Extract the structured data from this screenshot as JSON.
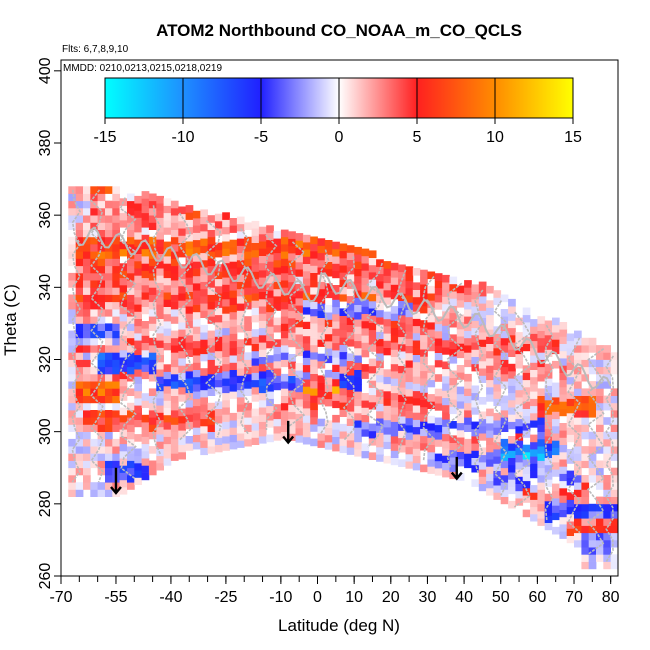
{
  "chart_data": {
    "type": "heatmap",
    "title": "ATOM2 Northbound CO_NOAA_m_CO_QCLS",
    "flights_label": "Flts: 6,7,8,9,10",
    "dates_label": "MMDD: 0210,0213,0215,0218,0219",
    "xlabel": "Latitude (deg N)",
    "ylabel": "Theta (C)",
    "xlim": [
      -70,
      82
    ],
    "ylim": [
      260,
      403
    ],
    "x_ticks": [
      -70,
      -55,
      -40,
      -25,
      -10,
      0,
      10,
      20,
      30,
      40,
      50,
      60,
      70,
      80
    ],
    "x_tick_labels": [
      "-70",
      "-55",
      "-40",
      "-25",
      "-10",
      "0",
      "10",
      "20",
      "30",
      "40",
      "50",
      "60",
      "70",
      "80"
    ],
    "y_ticks": [
      260,
      280,
      300,
      320,
      340,
      360,
      380,
      400
    ],
    "y_tick_labels": [
      "260",
      "280",
      "300",
      "320",
      "340",
      "360",
      "380",
      "400"
    ],
    "colorbar": {
      "range": [
        -15,
        15
      ],
      "ticks": [
        -15,
        -10,
        -5,
        0,
        5,
        10,
        15
      ],
      "tick_labels": [
        "-15",
        "-10",
        "-5",
        "0",
        "5",
        "10",
        "15"
      ],
      "colors": {
        "neg15": "#00ffff",
        "neg10": "#1e90ff",
        "neg5": "#2020ff",
        "zero": "#ffffff",
        "pos5": "#ff2020",
        "pos10": "#ff8c00",
        "pos15": "#ffff00"
      }
    },
    "tropopause_color": "#bbbbbb",
    "arrows": [
      {
        "lat": -55,
        "theta_top": 290,
        "theta_bottom": 283
      },
      {
        "lat": -8,
        "theta_top": 303,
        "theta_bottom": 297
      },
      {
        "lat": 38,
        "theta_top": 293,
        "theta_bottom": 287
      }
    ],
    "bands": [
      {
        "theta": 368,
        "lat": [
          -63,
          -58
        ],
        "value": 5
      },
      {
        "theta": 365,
        "lat": [
          -63,
          -20
        ],
        "value": 1.5
      },
      {
        "theta": 361,
        "lat": [
          -63,
          -15
        ],
        "value": 2.5
      },
      {
        "theta": 357,
        "lat": [
          -65,
          -5
        ],
        "value": 2
      },
      {
        "theta": 353,
        "lat": [
          -66,
          10
        ],
        "value": 1.5
      },
      {
        "theta": 350,
        "lat": [
          -66,
          15
        ],
        "value": 5
      },
      {
        "theta": 347,
        "lat": [
          -67,
          28
        ],
        "value": 2
      },
      {
        "theta": 344,
        "lat": [
          -67,
          35
        ],
        "value": 3
      },
      {
        "theta": 341,
        "lat": [
          -67,
          40
        ],
        "value": 1.5
      },
      {
        "theta": 338,
        "lat": [
          -67,
          45
        ],
        "value": 2.5
      },
      {
        "theta": 335,
        "lat": [
          -67,
          30
        ],
        "value": 3
      },
      {
        "theta": 333,
        "lat": [
          -5,
          25
        ],
        "value": -5
      },
      {
        "theta": 331,
        "lat": [
          -67,
          40
        ],
        "value": 1
      },
      {
        "theta": 328,
        "lat": [
          -10,
          30
        ],
        "value": 2.5
      },
      {
        "theta": 326,
        "lat": [
          -67,
          -55
        ],
        "value": -5
      },
      {
        "theta": 323,
        "lat": [
          -67,
          65
        ],
        "value": 3
      },
      {
        "theta": 320,
        "lat": [
          -20,
          10
        ],
        "value": -3
      },
      {
        "theta": 318,
        "lat": [
          -60,
          -45
        ],
        "value": -8
      },
      {
        "theta": 316,
        "lat": [
          -67,
          70
        ],
        "value": 2
      },
      {
        "theta": 313,
        "lat": [
          -45,
          10
        ],
        "value": -6
      },
      {
        "theta": 312,
        "lat": [
          -5,
          5
        ],
        "value": 9
      },
      {
        "theta": 310,
        "lat": [
          -67,
          -55
        ],
        "value": 7
      },
      {
        "theta": 308,
        "lat": [
          -10,
          30
        ],
        "value": 3
      },
      {
        "theta": 306,
        "lat": [
          60,
          75
        ],
        "value": 6
      },
      {
        "theta": 304,
        "lat": [
          -66,
          40
        ],
        "value": 1
      },
      {
        "theta": 302,
        "lat": [
          -65,
          -30
        ],
        "value": 4
      },
      {
        "theta": 300,
        "lat": [
          10,
          60
        ],
        "value": -4
      },
      {
        "theta": 297,
        "lat": [
          20,
          70
        ],
        "value": 2
      },
      {
        "theta": 294,
        "lat": [
          50,
          65
        ],
        "value": -9
      },
      {
        "theta": 291,
        "lat": [
          30,
          60
        ],
        "value": -4
      },
      {
        "theta": 288,
        "lat": [
          -58,
          -48
        ],
        "value": -6
      },
      {
        "theta": 285,
        "lat": [
          45,
          70
        ],
        "value": -3
      },
      {
        "theta": 282,
        "lat": [
          55,
          72
        ],
        "value": 3
      },
      {
        "theta": 277,
        "lat": [
          62,
          80
        ],
        "value": -5
      },
      {
        "theta": 273,
        "lat": [
          68,
          80
        ],
        "value": 4
      },
      {
        "theta": 268,
        "lat": [
          72,
          80
        ],
        "value": -3
      }
    ]
  }
}
